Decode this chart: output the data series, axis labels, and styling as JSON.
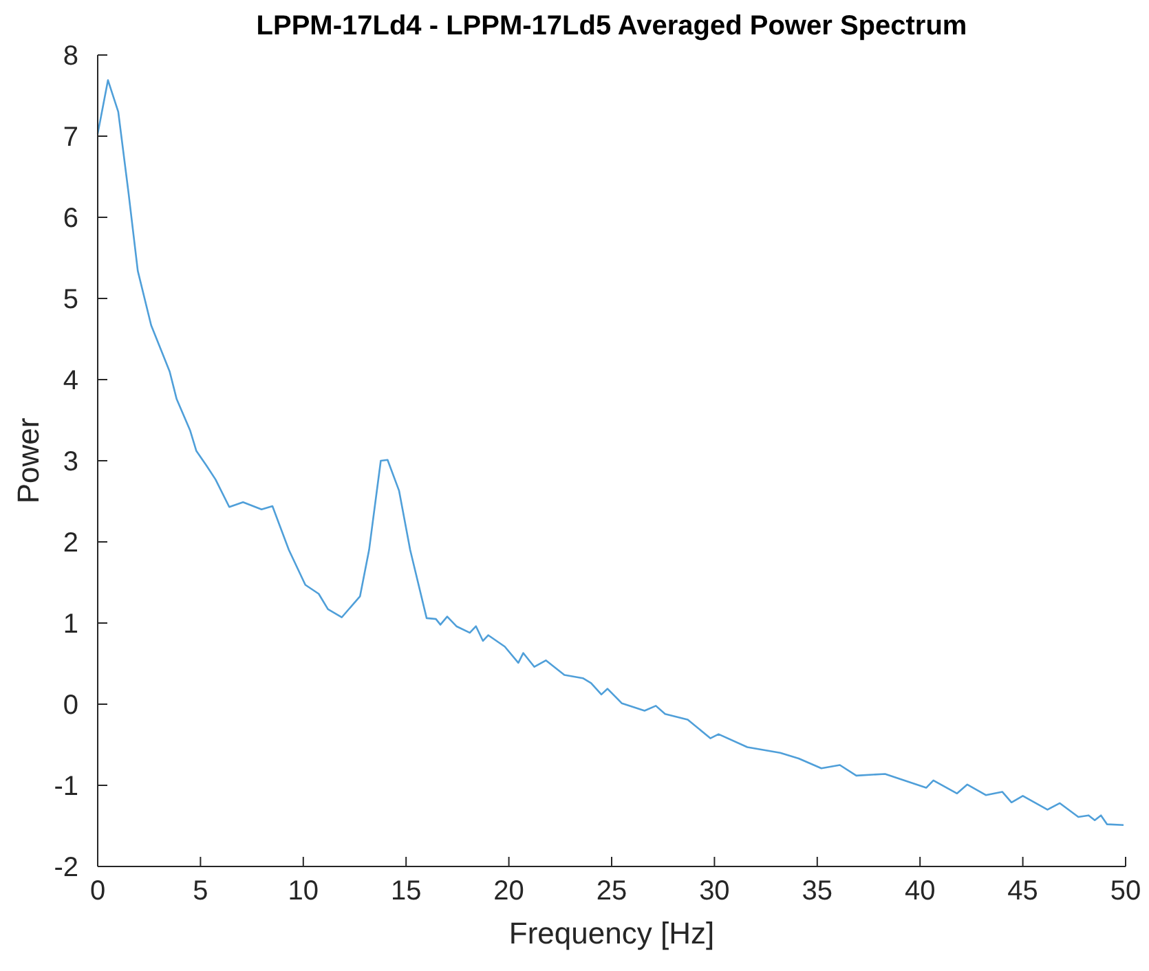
{
  "chart_data": {
    "type": "line",
    "title": "LPPM-17Ld4 - LPPM-17Ld5 Averaged Power Spectrum",
    "xlabel": "Frequency [Hz]",
    "ylabel": "Power",
    "xlim": [
      0,
      50
    ],
    "ylim": [
      -2,
      8
    ],
    "xticks": [
      0,
      5,
      10,
      15,
      20,
      25,
      30,
      35,
      40,
      45,
      50
    ],
    "yticks": [
      -2,
      -1,
      0,
      1,
      2,
      3,
      4,
      5,
      6,
      7,
      8
    ],
    "grid": false,
    "series": [
      {
        "color": "#4f9fd9",
        "x": [
          0,
          0.5,
          1,
          1.5,
          1.95,
          2.6,
          3.5,
          3.84,
          4.5,
          4.8,
          5.29,
          5.73,
          6.4,
          7.07,
          7.97,
          8.5,
          9.3,
          10.1,
          10.75,
          11.2,
          11.87,
          12.76,
          13.2,
          13.77,
          14.1,
          14.66,
          15.2,
          16.0,
          16.45,
          16.67,
          17.0,
          17.45,
          18.1,
          18.4,
          18.74,
          19.0,
          19.8,
          20.46,
          20.7,
          21.24,
          21.8,
          22.7,
          23.6,
          24.0,
          24.5,
          24.8,
          25.5,
          26.6,
          27.15,
          27.6,
          28.7,
          29.8,
          30.2,
          31.6,
          33.2,
          34.1,
          35.2,
          36.1,
          36.9,
          38.3,
          40.3,
          40.65,
          41.8,
          42.3,
          43.2,
          44.0,
          44.45,
          45.0,
          46.2,
          46.8,
          47.7,
          48.2,
          48.5,
          48.8,
          49.1,
          49.9
        ],
        "values": [
          7.03,
          7.69,
          7.3,
          6.3,
          5.34,
          4.67,
          4.1,
          3.76,
          3.37,
          3.12,
          2.94,
          2.77,
          2.43,
          2.49,
          2.4,
          2.44,
          1.9,
          1.47,
          1.36,
          1.17,
          1.07,
          1.33,
          1.9,
          3.0,
          3.01,
          2.63,
          1.9,
          1.06,
          1.05,
          0.98,
          1.08,
          0.96,
          0.88,
          0.96,
          0.78,
          0.85,
          0.71,
          0.51,
          0.63,
          0.46,
          0.54,
          0.36,
          0.32,
          0.26,
          0.12,
          0.19,
          0.01,
          -0.08,
          -0.02,
          -0.12,
          -0.19,
          -0.42,
          -0.37,
          -0.53,
          -0.6,
          -0.67,
          -0.79,
          -0.75,
          -0.88,
          -0.86,
          -1.03,
          -0.94,
          -1.1,
          -0.99,
          -1.12,
          -1.08,
          -1.21,
          -1.13,
          -1.3,
          -1.22,
          -1.39,
          -1.37,
          -1.43,
          -1.37,
          -1.48,
          -1.49
        ]
      }
    ]
  }
}
